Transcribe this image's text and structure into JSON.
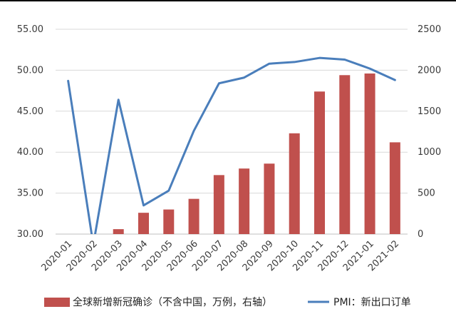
{
  "chart_data": {
    "type": "bar+line",
    "title": "",
    "categories": [
      "2020-01",
      "2020-02",
      "2020-03",
      "2020-04",
      "2020-05",
      "2020-06",
      "2020-07",
      "2020-08",
      "2020-09",
      "2020-10",
      "2020-11",
      "2020-12",
      "2021-01",
      "2021-02"
    ],
    "series": [
      {
        "name": "全球新增新冠确诊（不含中国，万例，右轴）",
        "type": "bar",
        "axis": "right",
        "color": "#c0504d",
        "values": [
          0,
          0,
          60,
          260,
          300,
          430,
          720,
          800,
          860,
          1230,
          1740,
          1940,
          1960,
          1120
        ]
      },
      {
        "name": "PMI：新出口订单",
        "type": "line",
        "axis": "left",
        "color": "#4a7ebb",
        "values": [
          48.7,
          28.7,
          46.4,
          33.5,
          35.3,
          42.6,
          48.4,
          49.1,
          50.8,
          51.0,
          51.5,
          51.3,
          50.2,
          48.8
        ]
      }
    ],
    "left_axis": {
      "min": 30,
      "max": 55,
      "ticks": [
        "30.00",
        "35.00",
        "40.00",
        "45.00",
        "50.00",
        "55.00"
      ]
    },
    "right_axis": {
      "min": 0,
      "max": 2500,
      "ticks": [
        "0",
        "500",
        "1000",
        "1500",
        "2000",
        "2500"
      ]
    },
    "grid": true,
    "legend_position": "bottom"
  }
}
